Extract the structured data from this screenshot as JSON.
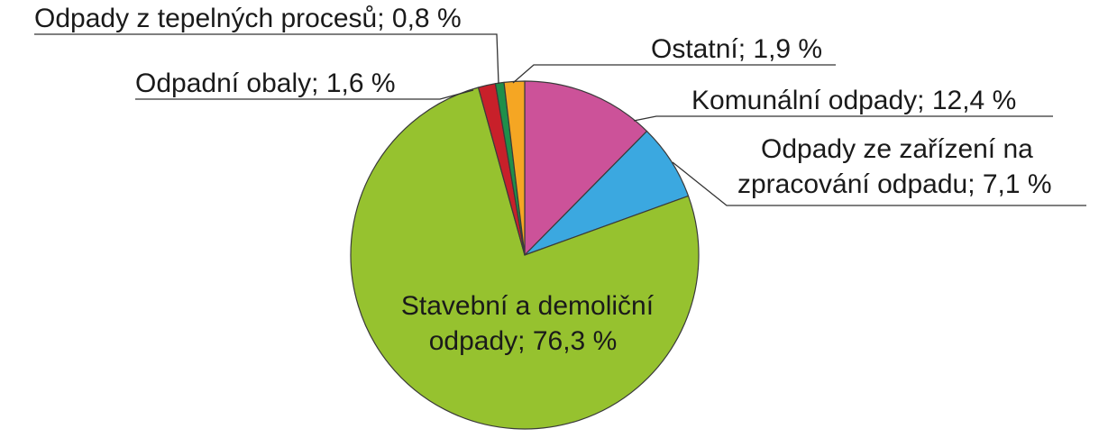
{
  "chart_data": {
    "type": "pie",
    "title": "",
    "unit": "%",
    "slices": [
      {
        "label": "Komunální odpady; 12,4 %",
        "value": 12.4,
        "color": "#cc5299"
      },
      {
        "label_lines": [
          "Odpady ze zařízení na",
          "zpracování odpadu; 7,1 %"
        ],
        "value": 7.1,
        "color": "#3ba8e0"
      },
      {
        "label_lines": [
          "Stavební a demoliční",
          "odpady; 76,3 %"
        ],
        "value": 76.3,
        "color": "#96c22f"
      },
      {
        "label": "Odpadní obaly; 1,6 %",
        "value": 1.6,
        "color": "#c8202a"
      },
      {
        "label": "Odpady z tepelných procesů; 0,8 %",
        "value": 0.8,
        "color": "#1f8f4a"
      },
      {
        "label": "Ostatní; 1,9 %",
        "value": 1.9,
        "color": "#f5a623"
      }
    ]
  }
}
